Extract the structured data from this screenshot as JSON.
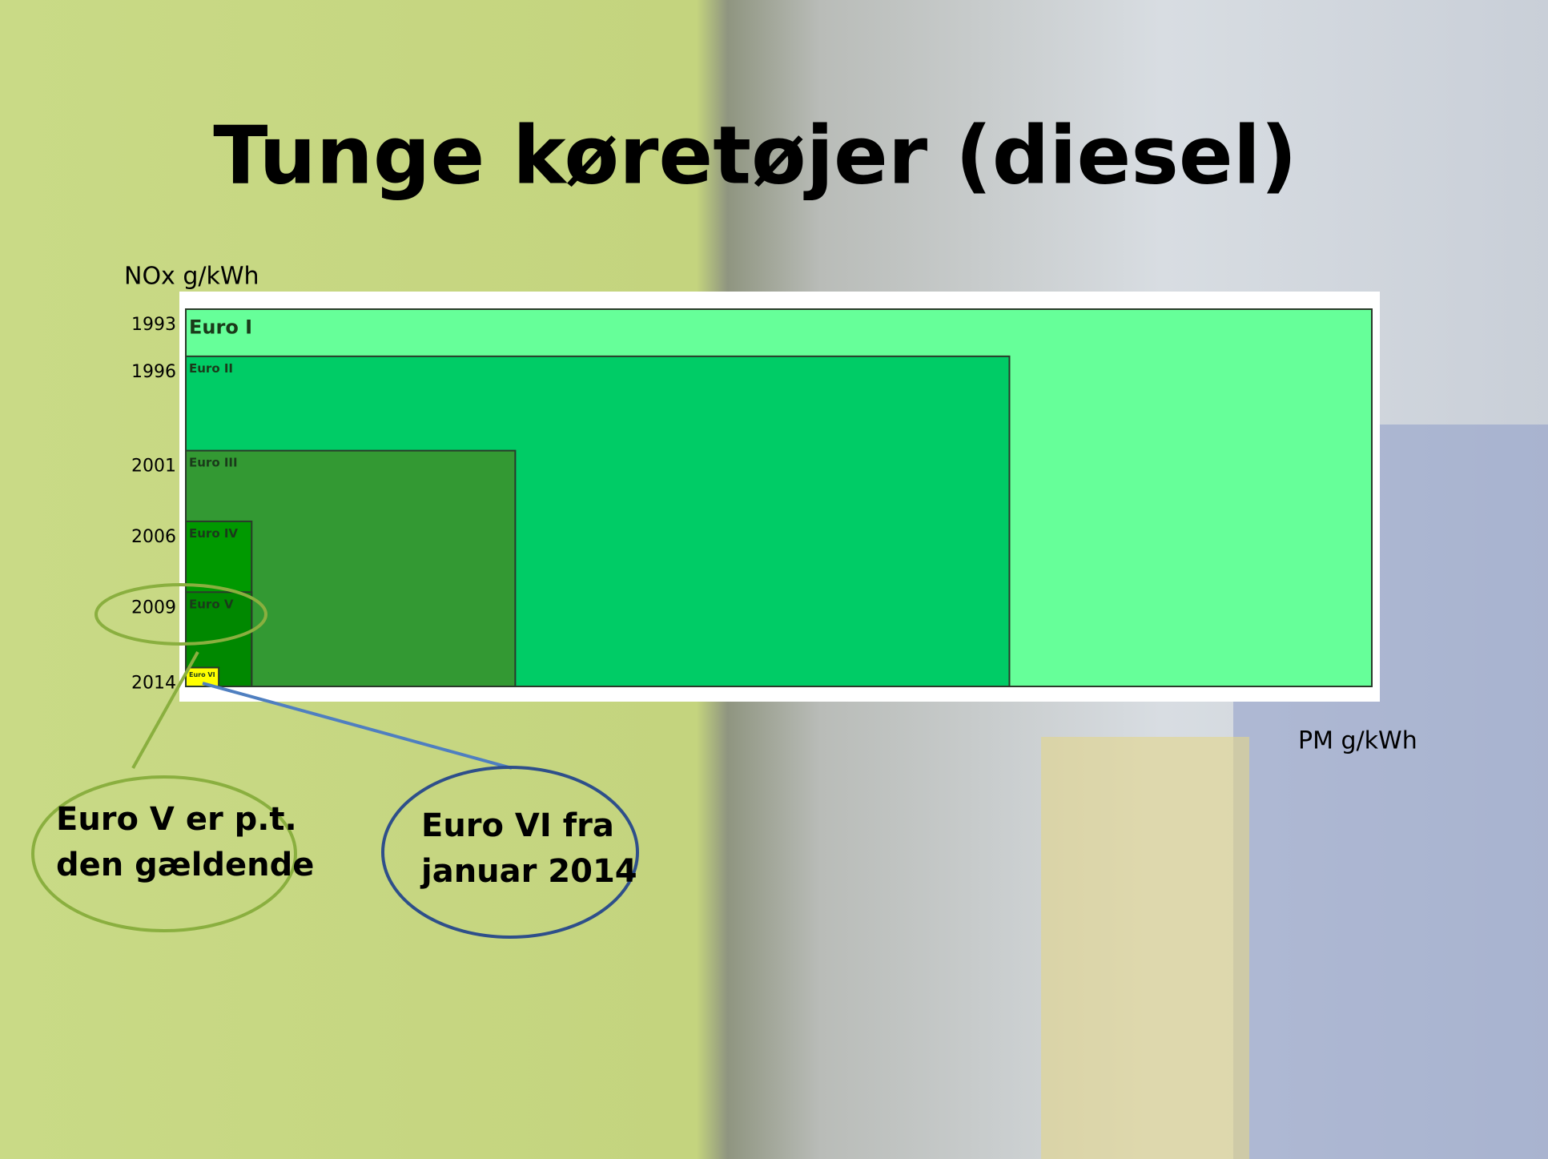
{
  "chart_data": {
    "type": "nested_area",
    "title": "Tunge køretøjer (diesel)",
    "y_label": "NOx g/kWh",
    "x_label": "PM g/kWh",
    "xlim": [
      0,
      0.36
    ],
    "ylim": [
      0,
      8
    ],
    "series": [
      {
        "name": "Euro I",
        "year": 1993,
        "color": "#66ff99",
        "pm": 0.36,
        "nox": 8
      },
      {
        "name": "Euro II",
        "year": 1996,
        "color": "#00cc66",
        "pm": 0.25,
        "nox": 7
      },
      {
        "name": "Euro III",
        "year": 2001,
        "color": "#339933",
        "pm": 0.1,
        "nox": 5
      },
      {
        "name": "Euro IV",
        "year": 2006,
        "color": "#009900",
        "pm": 0.02,
        "nox": 3.5
      },
      {
        "name": "Euro V",
        "year": 2009,
        "color": "#008800",
        "pm": 0.02,
        "nox": 2
      },
      {
        "name": "Euro VI",
        "year": 2014,
        "color": "#ffff00",
        "pm": 0.01,
        "nox": 0.4
      }
    ],
    "annotations": [
      {
        "lines": [
          "Euro V er p.t.",
          "den gældende"
        ],
        "color": "#8aaf3f"
      },
      {
        "lines": [
          "Euro VI fra",
          "januar 2014"
        ],
        "color": "#2e4f8a"
      }
    ]
  }
}
